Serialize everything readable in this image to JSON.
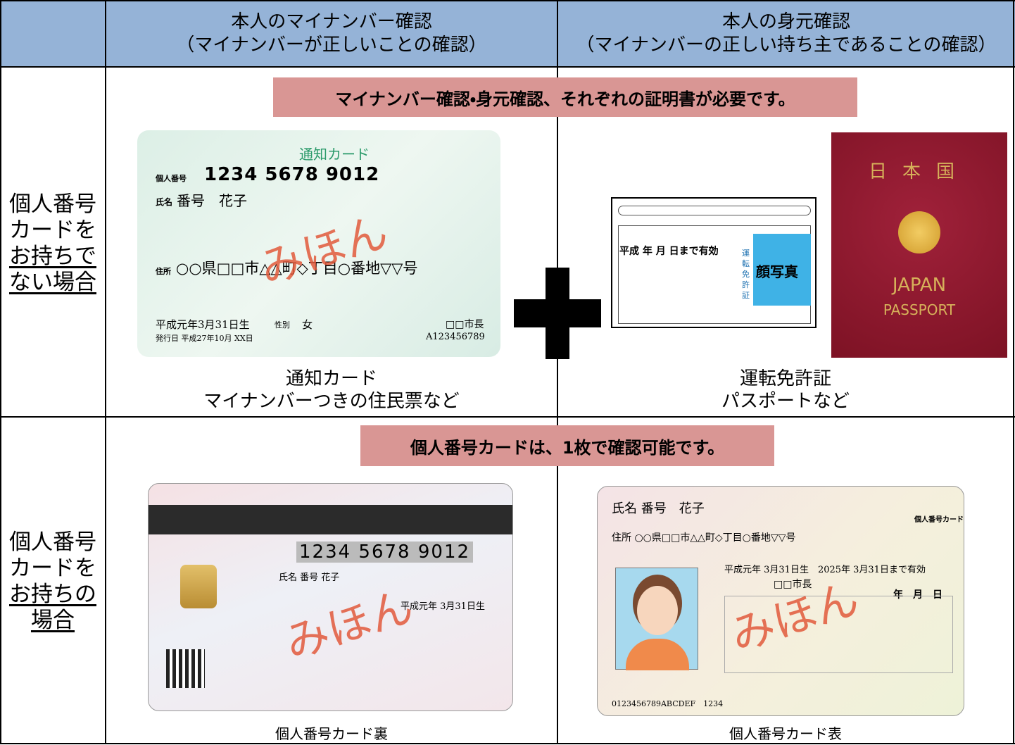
{
  "header": {
    "columns": [
      {
        "title": "本人のマイナンバー確認",
        "subtitle": "（マイナンバーが正しいことの確認）"
      },
      {
        "title": "本人の身元確認",
        "subtitle": "（マイナンバーの正しい持ち主であることの確認）"
      }
    ]
  },
  "rows": [
    {
      "label_lines": [
        "個人番号",
        "カードを",
        "お持ちで",
        "ない場合"
      ],
      "banner": "マイナンバー確認・身元確認、それぞれの証明書が必要です。",
      "items": [
        {
          "caption_lines": [
            "通知カード",
            "マイナンバーつきの住民票など"
          ]
        },
        {
          "caption_lines": [
            "運転免許証",
            "パスポートなど"
          ]
        }
      ]
    },
    {
      "label_lines": [
        "個人番号",
        "カードを",
        "お持ちの",
        "場合"
      ],
      "banner": "個人番号カードは、1枚で確認可能です。",
      "items": [
        {
          "caption_lines": [
            "個人番号カード裏"
          ]
        },
        {
          "caption_lines": [
            "個人番号カード表"
          ]
        }
      ]
    }
  ],
  "cards": {
    "notification": {
      "title": "通知カード",
      "number_label": "個人番号",
      "number": "1234 5678 9012",
      "name_label": "氏名",
      "name": "番号　花子",
      "address_label": "住所",
      "address": "○○県□□市△△町◇丁目○番地▽▽号",
      "birth": "平成元年3月31日生",
      "sex_label": "性別",
      "sex": "女",
      "issuer": "□□市長",
      "issued": "発行日 平成27年10月 XX日",
      "serial": "A123456789",
      "sample": "みほん"
    },
    "license": {
      "valid": "平成 年 月 日まで有効",
      "photo": "顔写真",
      "kind": "運転免許証"
    },
    "passport": {
      "country": "日本国",
      "japan": "JAPAN",
      "passport": "PASSPORT"
    },
    "back": {
      "number": "1234 5678 9012",
      "name": "氏名 番号 花子",
      "birth": "平成元年 3月31日生",
      "sample": "みほん"
    },
    "front": {
      "name": "氏名 番号　花子",
      "address": "住所 ○○県□□市△△町◇丁目○番地▽▽号",
      "dates": "平成元年 3月31日生　2025年 3月31日まで有効",
      "issuer": "□□市長",
      "expiry": "年　月　日",
      "logo": "個人番号カード",
      "serial": "0123456789ABCDEF　1234",
      "sample": "みほん"
    }
  }
}
